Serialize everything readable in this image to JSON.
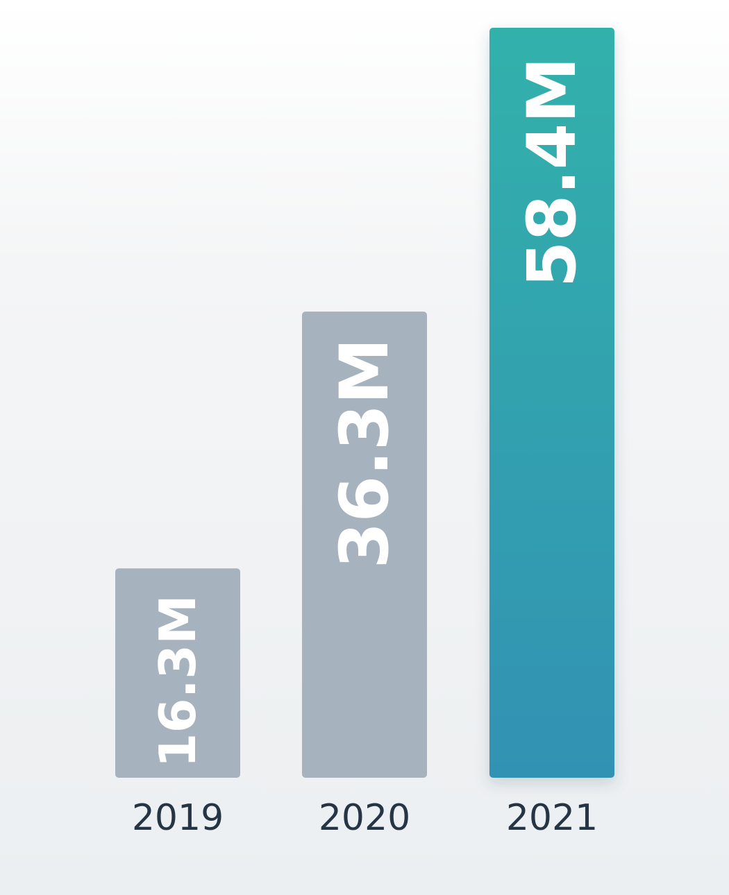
{
  "chart_data": {
    "type": "bar",
    "categories": [
      "2019",
      "2020",
      "2021"
    ],
    "values": [
      16.3,
      36.3,
      58.4
    ],
    "value_labels": [
      "16.3M",
      "36.3M",
      "58.4M"
    ],
    "unit": "M",
    "title": "",
    "xlabel": "",
    "ylabel": "",
    "ylim": [
      0,
      58.4
    ],
    "grid": false,
    "legend": "none",
    "highlight_index": 2,
    "colors": {
      "bar": "#a6b2bd",
      "highlight_top": "#32b1ab",
      "highlight_bottom": "#3192b3",
      "value_text": "#ffffff",
      "tick_text": "#253545"
    }
  }
}
